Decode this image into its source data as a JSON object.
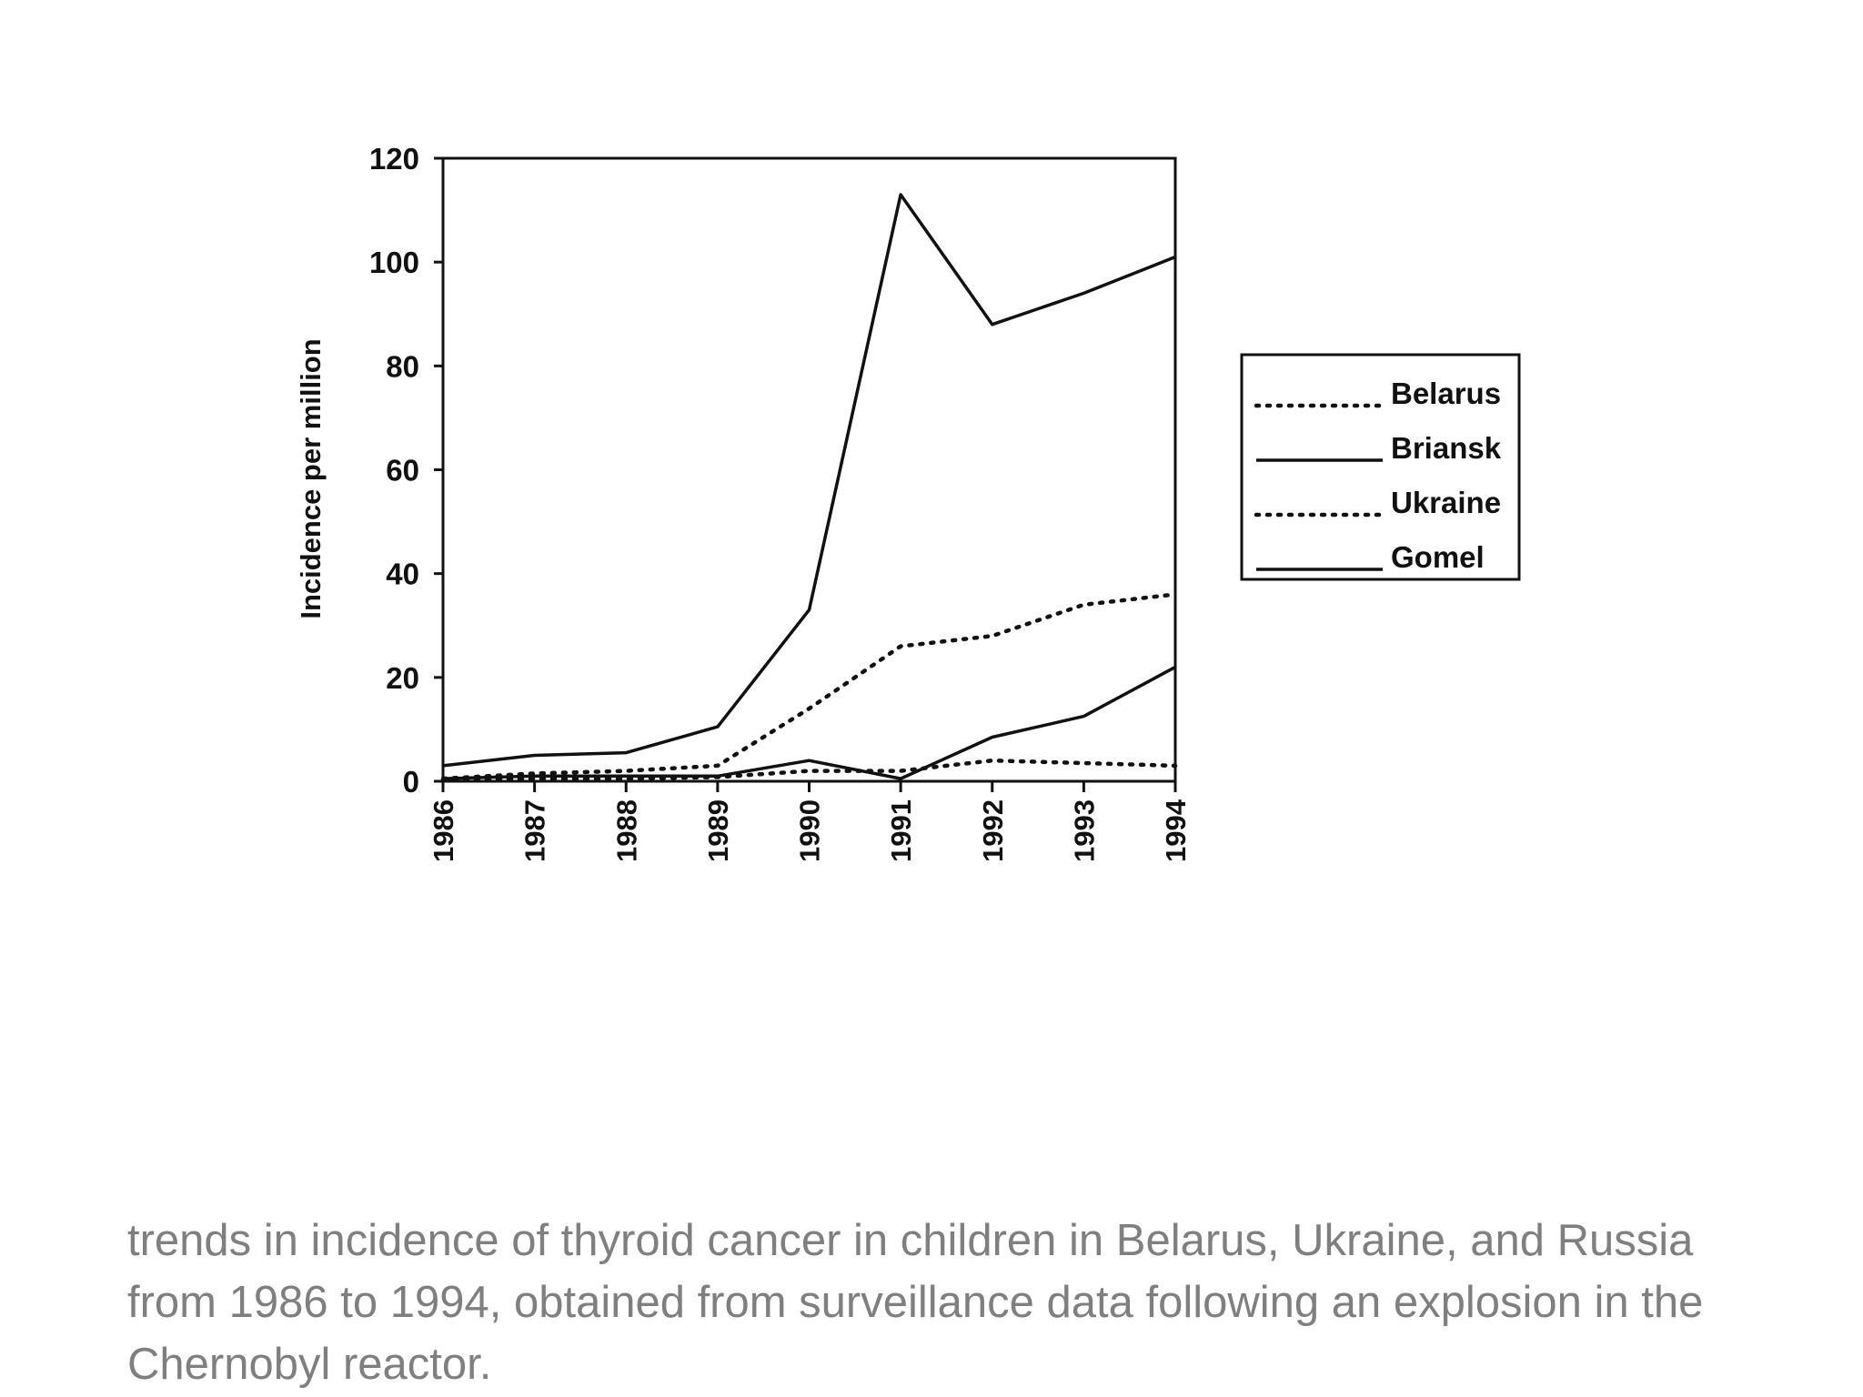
{
  "caption": "trends in incidence of thyroid cancer in children in Belarus, Ukraine, and Russia from 1986 to 1994, obtained from surveillance data following an explosion in the Chernobyl reactor.",
  "chart_data": {
    "type": "line",
    "title": "",
    "xlabel": "",
    "ylabel": "Incidence per million",
    "x": [
      "1986",
      "1987",
      "1988",
      "1989",
      "1990",
      "1991",
      "1992",
      "1993",
      "1994"
    ],
    "xlim": [
      1986,
      1994
    ],
    "ylim": [
      0,
      120
    ],
    "yticks": [
      0,
      20,
      40,
      60,
      80,
      100,
      120
    ],
    "grid": false,
    "legend_position": "right",
    "series": [
      {
        "name": "Belarus",
        "style": "dotted",
        "color": "#111111",
        "values": [
          0.5,
          1.5,
          2,
          3,
          14,
          26,
          28,
          34,
          36
        ]
      },
      {
        "name": "Briansk",
        "style": "solid",
        "color": "#111111",
        "values": [
          0.5,
          1,
          1,
          1,
          4,
          0.5,
          8.5,
          12.5,
          22
        ]
      },
      {
        "name": "Ukraine",
        "style": "dotted",
        "color": "#111111",
        "values": [
          0.3,
          0.5,
          0.5,
          0.8,
          2,
          2,
          4,
          3.5,
          3
        ]
      },
      {
        "name": "Gomel",
        "style": "solid",
        "color": "#111111",
        "values": [
          3,
          5,
          5.5,
          10.5,
          33,
          113,
          88,
          94,
          101
        ]
      }
    ]
  }
}
